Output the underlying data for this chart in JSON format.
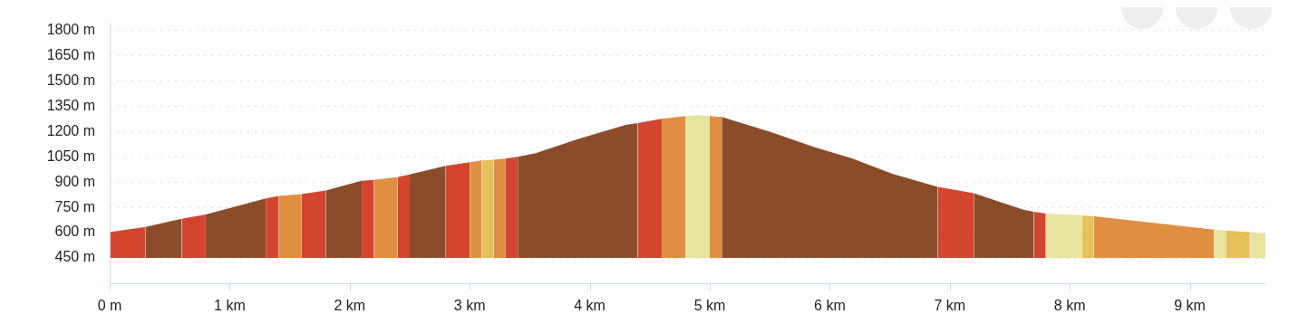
{
  "chart_data": {
    "type": "area",
    "series": [
      {
        "color": "#d4452f",
        "x": [
          0,
          0.3
        ],
        "values": [
          603,
          634
        ]
      },
      {
        "color": "#8b4c2a",
        "x": [
          0.3,
          0.6
        ],
        "values": [
          634,
          682
        ]
      },
      {
        "color": "#d4452f",
        "x": [
          0.6,
          0.8
        ],
        "values": [
          682,
          708
        ]
      },
      {
        "color": "#8b4c2a",
        "x": [
          0.8,
          1.3
        ],
        "values": [
          708,
          803
        ]
      },
      {
        "color": "#d4452f",
        "x": [
          1.3,
          1.41
        ],
        "values": [
          803,
          818
        ]
      },
      {
        "color": "#e08e41",
        "x": [
          1.41,
          1.6
        ],
        "values": [
          818,
          829
        ]
      },
      {
        "color": "#d4452f",
        "x": [
          1.6,
          1.8
        ],
        "values": [
          829,
          850
        ]
      },
      {
        "color": "#8b4c2a",
        "x": [
          1.8,
          2.1
        ],
        "values": [
          850,
          908
        ]
      },
      {
        "color": "#d4452f",
        "x": [
          2.1,
          2.2
        ],
        "values": [
          908,
          913
        ]
      },
      {
        "color": "#e08e41",
        "x": [
          2.2,
          2.4
        ],
        "values": [
          913,
          929
        ]
      },
      {
        "color": "#d4452f",
        "x": [
          2.4,
          2.5
        ],
        "values": [
          929,
          945
        ]
      },
      {
        "color": "#8b4c2a",
        "x": [
          2.5,
          2.8
        ],
        "values": [
          945,
          997
        ]
      },
      {
        "color": "#d4452f",
        "x": [
          2.8,
          3.0
        ],
        "values": [
          997,
          1018
        ]
      },
      {
        "color": "#e08e41",
        "x": [
          3.0,
          3.1
        ],
        "values": [
          1018,
          1029
        ]
      },
      {
        "color": "#e8c05a",
        "x": [
          3.1,
          3.2
        ],
        "values": [
          1029,
          1032
        ]
      },
      {
        "color": "#e08e41",
        "x": [
          3.2,
          3.3
        ],
        "values": [
          1032,
          1039
        ]
      },
      {
        "color": "#d4452f",
        "x": [
          3.3,
          3.4
        ],
        "values": [
          1039,
          1050
        ]
      },
      {
        "color": "#8b4c2a",
        "x": [
          3.4,
          3.55,
          3.9,
          4.3,
          4.4
        ],
        "values": [
          1050,
          1071,
          1155,
          1240,
          1250
        ]
      },
      {
        "color": "#d4452f",
        "x": [
          4.4,
          4.6
        ],
        "values": [
          1250,
          1276
        ]
      },
      {
        "color": "#e08e41",
        "x": [
          4.6,
          4.8
        ],
        "values": [
          1276,
          1292
        ]
      },
      {
        "color": "#e6e49f",
        "x": [
          4.8,
          4.9,
          5.0
        ],
        "values": [
          1292,
          1297,
          1292
        ]
      },
      {
        "color": "#e08e41",
        "x": [
          5.0,
          5.1
        ],
        "values": [
          1292,
          1287
        ]
      },
      {
        "color": "#8b4c2a",
        "x": [
          5.1,
          5.51,
          5.87,
          6.19,
          6.52,
          6.9
        ],
        "values": [
          1287,
          1197,
          1108,
          1039,
          950,
          871
        ]
      },
      {
        "color": "#d4452f",
        "x": [
          6.9,
          7.2
        ],
        "values": [
          871,
          834
        ]
      },
      {
        "color": "#8b4c2a",
        "x": [
          7.2,
          7.42,
          7.62,
          7.7
        ],
        "values": [
          834,
          782,
          734,
          724
        ]
      },
      {
        "color": "#d4452f",
        "x": [
          7.7,
          7.8
        ],
        "values": [
          724,
          713
        ]
      },
      {
        "color": "#e6e49f",
        "x": [
          7.8,
          8.1
        ],
        "values": [
          713,
          703
        ]
      },
      {
        "color": "#e8c05a",
        "x": [
          8.1,
          8.2
        ],
        "values": [
          703,
          697
        ]
      },
      {
        "color": "#e08e41",
        "x": [
          8.2,
          9.2
        ],
        "values": [
          697,
          618
        ]
      },
      {
        "color": "#e6e49f",
        "x": [
          9.2,
          9.3
        ],
        "values": [
          618,
          613
        ]
      },
      {
        "color": "#e8c05a",
        "x": [
          9.3,
          9.5
        ],
        "values": [
          613,
          603
        ]
      },
      {
        "color": "#e6e49f",
        "x": [
          9.5,
          9.63
        ],
        "values": [
          603,
          597
        ]
      }
    ],
    "xlim": [
      0,
      9.63
    ],
    "xticks": [
      {
        "value": 0,
        "label": "0 m"
      },
      {
        "value": 1,
        "label": "1 km"
      },
      {
        "value": 2,
        "label": "2 km"
      },
      {
        "value": 3,
        "label": "3 km"
      },
      {
        "value": 4,
        "label": "4 km"
      },
      {
        "value": 5,
        "label": "5 km"
      },
      {
        "value": 6,
        "label": "6 km"
      },
      {
        "value": 7,
        "label": "7 km"
      },
      {
        "value": 8,
        "label": "8 km"
      },
      {
        "value": 9,
        "label": "9 km"
      }
    ],
    "ylim": [
      450,
      1800
    ],
    "yticks": [
      {
        "value": 450,
        "label": "450 m"
      },
      {
        "value": 600,
        "label": "600 m"
      },
      {
        "value": 750,
        "label": "750 m"
      },
      {
        "value": 900,
        "label": "900 m"
      },
      {
        "value": 1050,
        "label": "1050 m"
      },
      {
        "value": 1200,
        "label": "1200 m"
      },
      {
        "value": 1350,
        "label": "1350 m"
      },
      {
        "value": 1500,
        "label": "1500 m"
      },
      {
        "value": 1650,
        "label": "1650 m"
      },
      {
        "value": 1800,
        "label": "1800 m"
      }
    ],
    "grid": "y",
    "legend": false,
    "marker": "none"
  }
}
